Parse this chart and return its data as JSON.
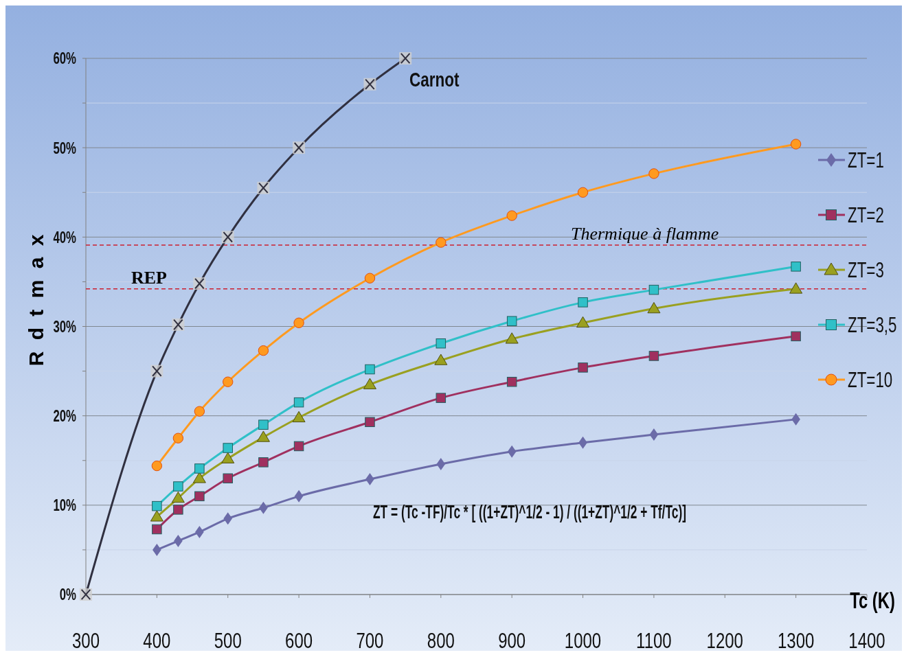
{
  "chart_data": {
    "type": "line",
    "xlabel": "Tc (K)",
    "ylabel": "R d t m a x",
    "xlim": [
      300,
      1400
    ],
    "xticks": [
      300,
      400,
      500,
      600,
      700,
      800,
      900,
      1000,
      1100,
      1200,
      1300,
      1400
    ],
    "ylim": [
      0,
      60
    ],
    "yticks": [
      {
        "value": 0,
        "label": "0%"
      },
      {
        "value": 5,
        "label": null
      },
      {
        "value": 10,
        "label": "10%"
      },
      {
        "value": 15,
        "label": null
      },
      {
        "value": 20,
        "label": "20%"
      },
      {
        "value": 25,
        "label": null
      },
      {
        "value": 30,
        "label": "30%"
      },
      {
        "value": 35,
        "label": null
      },
      {
        "value": 40,
        "label": "40%"
      },
      {
        "value": 45,
        "label": null
      },
      {
        "value": 50,
        "label": "50%"
      },
      {
        "value": 55,
        "label": null
      },
      {
        "value": 60,
        "label": "60%"
      }
    ],
    "grid": "y",
    "legend": "right",
    "x": [
      400,
      430,
      460,
      500,
      550,
      600,
      700,
      800,
      900,
      1000,
      1100,
      1300
    ],
    "series": [
      {
        "name": "ZT=1",
        "color": "#6b6ba8",
        "marker": "diamond",
        "values": [
          5,
          6,
          7,
          8.5,
          9.7,
          11,
          12.9,
          14.6,
          16,
          17,
          17.9,
          19.6
        ]
      },
      {
        "name": "ZT=2",
        "color": "#a0305f",
        "marker": "square",
        "values": [
          7.3,
          9.5,
          11,
          13,
          14.8,
          16.6,
          19.3,
          22,
          23.8,
          25.4,
          26.7,
          28.9
        ]
      },
      {
        "name": "ZT=3",
        "color": "#9aa020",
        "marker": "triangle",
        "values": [
          8.7,
          10.8,
          13,
          15.2,
          17.6,
          19.8,
          23.5,
          26.2,
          28.6,
          30.4,
          32,
          34.2
        ]
      },
      {
        "name": "ZT=3,5",
        "color": "#30c0c8",
        "marker": "square",
        "values": [
          9.9,
          12.1,
          14.1,
          16.4,
          19,
          21.5,
          25.2,
          28.1,
          30.6,
          32.7,
          34.1,
          36.7
        ]
      },
      {
        "name": "ZT=10",
        "color": "#ff9a20",
        "marker": "circle",
        "values": [
          14.4,
          17.5,
          20.5,
          23.8,
          27.3,
          30.4,
          35.4,
          39.4,
          42.4,
          45,
          47.1,
          50.4
        ]
      },
      {
        "name": "Carnot",
        "color": "#303040",
        "marker": "cross",
        "x": [
          300,
          400,
          430,
          460,
          500,
          550,
          600,
          700,
          750
        ],
        "values": [
          0,
          25,
          30.2,
          34.8,
          40,
          45.5,
          50,
          57.1,
          60
        ]
      }
    ],
    "ref_lines": [
      {
        "axis": "y",
        "value": 34.2,
        "label": "REP",
        "color": "#cc2030",
        "line_style": "dashed"
      },
      {
        "axis": "y",
        "value": 39.1,
        "label": "Thermique à flamme",
        "color": "#cc2030",
        "line_style": "dashed"
      }
    ],
    "annotations": [
      "ZT = (Tc -TF)/Tc * [ ((1+ZT)^1/2 - 1) / ((1+ZT)^1/2 + Tf/Tc)]"
    ]
  }
}
